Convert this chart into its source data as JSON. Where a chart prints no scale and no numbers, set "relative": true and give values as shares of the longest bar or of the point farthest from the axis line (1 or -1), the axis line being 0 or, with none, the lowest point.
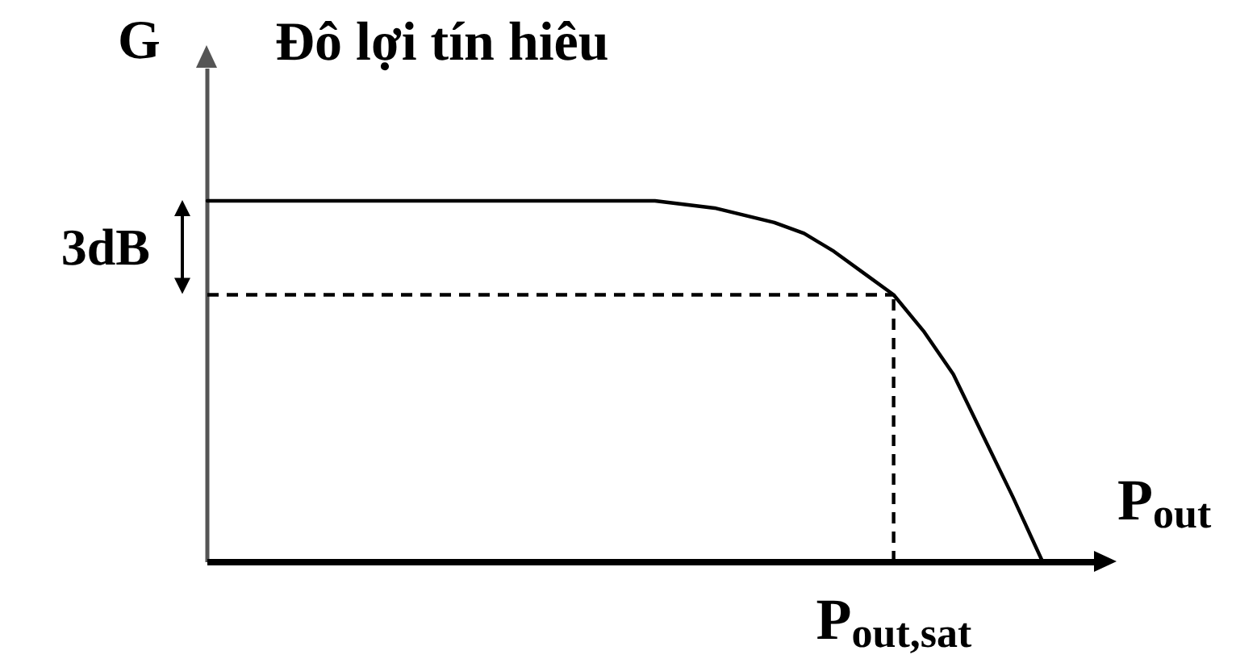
{
  "chart_data": {
    "type": "line",
    "title": "Đô lợi tín hiêu",
    "xlabel": "P$_{out}$",
    "ylabel": "G",
    "relative": true,
    "line_style": "solid",
    "categories": [
      null,
      null,
      null,
      null,
      null,
      null,
      null,
      null,
      null,
      null,
      null,
      null,
      null,
      null,
      null,
      null,
      null,
      null,
      null,
      null,
      null,
      null,
      null,
      null,
      null,
      null,
      null,
      null,
      null
    ],
    "series": [
      {
        "color": "#000000",
        "values": [
          1,
          1,
          1,
          1,
          1,
          1,
          1,
          1,
          1,
          1,
          1,
          1,
          1,
          1,
          1,
          1,
          0.99,
          0.98,
          0.96,
          0.94,
          0.91,
          0.86,
          0.8,
          0.74,
          0.64,
          0.52,
          0.35,
          0.18,
          0
        ]
      }
    ],
    "ref_lines": [
      {
        "axis": "y",
        "value": 0.74,
        "label": "3dB",
        "line_style": "dashed",
        "color": "#000000"
      },
      {
        "axis": "x",
        "value": "P$_{out,sat}$",
        "line_style": "dashed",
        "color": "#000000"
      }
    ]
  }
}
